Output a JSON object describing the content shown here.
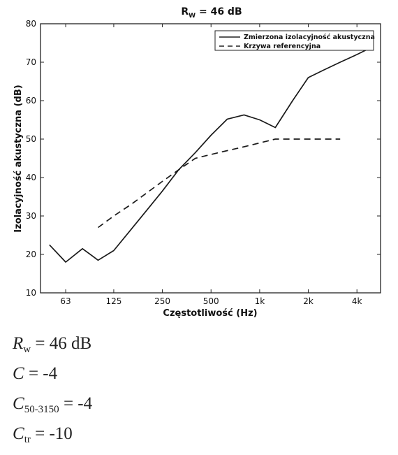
{
  "chart_data": {
    "type": "line",
    "title_main": "R",
    "title_sub": "W",
    "title_rest": " = 46 dB",
    "xlabel": "Częstotliwość (Hz)",
    "ylabel": "Izolacyjność akustyczna (dB)",
    "x_scale": "log",
    "xlim": [
      44,
      5600
    ],
    "ylim": [
      10,
      80
    ],
    "x_ticks": [
      {
        "value": 63,
        "label": "63"
      },
      {
        "value": 125,
        "label": "125"
      },
      {
        "value": 250,
        "label": "250"
      },
      {
        "value": 500,
        "label": "500"
      },
      {
        "value": 1000,
        "label": "1k"
      },
      {
        "value": 2000,
        "label": "2k"
      },
      {
        "value": 4000,
        "label": "4k"
      }
    ],
    "y_ticks": [
      10,
      20,
      30,
      40,
      50,
      60,
      70,
      80
    ],
    "grid": false,
    "legend_position": "top-right",
    "series": [
      {
        "name": "Zmierzona izolacyjność akustyczna",
        "style": "solid",
        "x": [
          50,
          63,
          80,
          100,
          125,
          160,
          200,
          250,
          315,
          400,
          500,
          630,
          800,
          1000,
          1250,
          1600,
          2000,
          2500,
          3150,
          4000,
          5000
        ],
        "y": [
          22.5,
          18,
          21.5,
          18.5,
          21,
          26.5,
          31.5,
          36.5,
          42,
          46.5,
          51,
          55.2,
          56.3,
          55,
          53,
          60,
          66,
          68,
          70,
          72,
          74
        ]
      },
      {
        "name": "Krzywa referencyjna",
        "style": "dashed",
        "x": [
          100,
          125,
          160,
          200,
          250,
          315,
          400,
          500,
          630,
          800,
          1000,
          1250,
          1600,
          2000,
          2500,
          3150
        ],
        "y": [
          27,
          30,
          33,
          36,
          39,
          42,
          45,
          46,
          47,
          48,
          49,
          50,
          50,
          50,
          50,
          50
        ]
      }
    ]
  },
  "ratings": [
    {
      "symbol": "R",
      "sub": "w",
      "value": " = 46 dB"
    },
    {
      "symbol": "C",
      "sub": "",
      "value": " = -4"
    },
    {
      "symbol": "C",
      "sub": "50-3150",
      "value": " = -4"
    },
    {
      "symbol": "C",
      "sub": "tr",
      "value": " = -10"
    }
  ]
}
